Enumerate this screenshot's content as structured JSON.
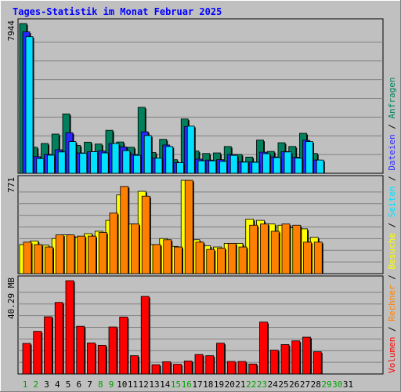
{
  "chart_data": {
    "type": "bar",
    "title": "Tages-Statistik im Monat Februar 2025",
    "days": [
      "1",
      "2",
      "3",
      "4",
      "5",
      "6",
      "7",
      "8",
      "9",
      "10",
      "11",
      "12",
      "13",
      "14",
      "15",
      "16",
      "17",
      "18",
      "19",
      "20",
      "21",
      "22",
      "23",
      "24",
      "25",
      "26",
      "27",
      "28",
      "29",
      "30",
      "31"
    ],
    "weekend_days": [
      "1",
      "2",
      "8",
      "9",
      "15",
      "16",
      "22",
      "23",
      "29",
      "30"
    ],
    "colors": {
      "panel_bg": "#c0c0c0",
      "title": "#0000ff",
      "anfragen": "#00805c",
      "dateien": "#2828ff",
      "seiten": "#00e0ff",
      "besuche": "#ffff00",
      "rechner": "#ff8000",
      "volumen": "#ff0000",
      "weekend_label": "#00a000",
      "weekday_label": "#000000",
      "right_label_separator": "#000000"
    },
    "panels": [
      {
        "max_label": "7944",
        "ylim": [
          0,
          7944
        ],
        "series": [
          {
            "name": "Anfragen",
            "values": [
              7944,
              1380,
              1580,
              2080,
              3150,
              1480,
              1650,
              1550,
              2280,
              1660,
              1380,
              3500,
              1100,
              1800,
              720,
              2880,
              1180,
              1050,
              1080,
              1420,
              1000,
              860,
              1760,
              1160,
              1620,
              1420,
              2120,
              1050,
              null,
              null,
              null
            ]
          },
          {
            "name": "Dateien",
            "values": [
              7500,
              880,
              1000,
              1250,
              2150,
              1080,
              1150,
              1180,
              1580,
              1400,
              1000,
              2200,
              800,
              1500,
              560,
              2480,
              750,
              700,
              720,
              1000,
              610,
              600,
              1120,
              870,
              1150,
              850,
              1750,
              700,
              null,
              null,
              null
            ]
          },
          {
            "name": "Seiten",
            "values": [
              7250,
              780,
              960,
              1130,
              1680,
              1060,
              1140,
              1080,
              1580,
              1200,
              950,
              2000,
              800,
              1420,
              560,
              2500,
              660,
              660,
              630,
              950,
              590,
              580,
              1040,
              830,
              1130,
              800,
              1680,
              700,
              null,
              null,
              null
            ]
          }
        ]
      },
      {
        "max_label": "771",
        "ylim": [
          0,
          771
        ],
        "series": [
          {
            "name": "Besuche",
            "values": [
              240,
              270,
              235,
              290,
              320,
              300,
              330,
              350,
              440,
              650,
              410,
              680,
              240,
              290,
              225,
              771,
              280,
              230,
              220,
              250,
              250,
              450,
              440,
              410,
              400,
              380,
              370,
              300,
              null,
              null,
              null
            ]
          },
          {
            "name": "Rechner",
            "values": [
              260,
              240,
              220,
              320,
              320,
              310,
              310,
              340,
              500,
              720,
              410,
              640,
              240,
              280,
              220,
              771,
              260,
              200,
              210,
              250,
              220,
              400,
              410,
              350,
              410,
              400,
              260,
              260,
              null,
              null,
              null
            ]
          }
        ]
      },
      {
        "max_label": "40.29 MB",
        "ylim": [
          0,
          40.29
        ],
        "series": [
          {
            "name": "Volumen",
            "values": [
              13.2,
              18.4,
              24.7,
              30.9,
              40.29,
              20.6,
              13.4,
              12.4,
              20.3,
              24.6,
              7.9,
              33.5,
              4.0,
              5.3,
              4.2,
              5.6,
              8.4,
              7.9,
              13.3,
              5.4,
              5.4,
              4.3,
              22.4,
              10.3,
              12.7,
              14.3,
              15.9,
              9.6,
              null,
              null,
              null
            ]
          }
        ]
      }
    ],
    "right_label_parts": [
      {
        "text": "Volumen",
        "color_key": "volumen"
      },
      {
        "text": " / ",
        "color_key": "right_label_separator"
      },
      {
        "text": "Rechner",
        "color_key": "rechner"
      },
      {
        "text": " / ",
        "color_key": "right_label_separator"
      },
      {
        "text": "Besuche",
        "color_key": "besuche"
      },
      {
        "text": " / ",
        "color_key": "right_label_separator"
      },
      {
        "text": "Seiten",
        "color_key": "seiten"
      },
      {
        "text": " / ",
        "color_key": "right_label_separator"
      },
      {
        "text": "Dateien",
        "color_key": "dateien"
      },
      {
        "text": " / ",
        "color_key": "right_label_separator"
      },
      {
        "text": "Anfragen",
        "color_key": "anfragen"
      }
    ]
  }
}
